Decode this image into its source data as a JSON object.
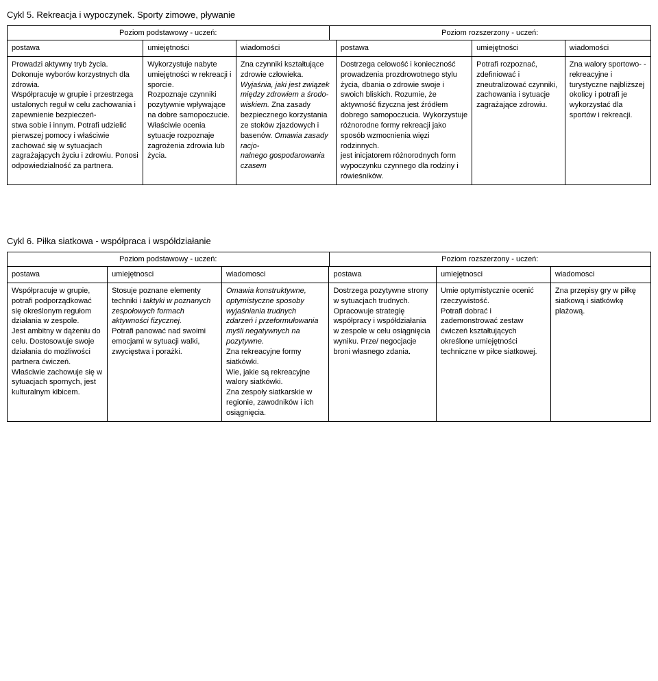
{
  "cycle5": {
    "title": "Cykl 5. Rekreacja i wypoczynek. Sporty zimowe, pływanie",
    "level_basic": "Poziom podstawowy - uczeń:",
    "level_ext": "Poziom rozszerzony - uczeń:",
    "headers": {
      "c1": "postawa",
      "c2": "umiejętności",
      "c3": "wiadomości",
      "c4": "postawa",
      "c5": "umiejętności",
      "c6": "wiadomości"
    },
    "row": {
      "c1": "Prowadzi aktywny tryb życia.\nDokonuje wyborów korzystnych dla zdrowia.\nWspółpracuje w grupie i przestrzega ustalonych reguł w celu zachowania i zapewnienie bezpieczeń-\nstwa sobie i innym. Potrafi udzielić pierwszej pomocy i właściwie zachować się w sytuacjach zagrażających życiu i zdrowiu. Ponosi odpowiedzialność za partnera.",
      "c2": "Wykorzystuje nabyte umiejętności w rekreacji i sporcie.\nRozpoznaje czynniki pozytywnie wpływające na dobre samopoczucie.\nWłaściwie ocenia sytuacje rozpoznaje zagrożenia zdrowia lub życia.",
      "c3_plain1": "Zna czynniki kształtujące zdrowie człowieka.",
      "c3_it1": "Wyjaśnia, jaki jest związek między zdrowiem a środo-\nwiskiem.",
      "c3_plain2": "Zna zasady bezpiecznego korzystania ze stoków zjazdowych i basenów.",
      "c3_it2": "Omawia zasady racjo-\nnalnego gospodarowania czasem",
      "c4": "Dostrzega celowość i konieczność prowadzenia prozdrowotnego stylu życia, dbania o zdrowie swoje i swoich bliskich. Rozumie, że aktywność fizyczna jest źródłem dobrego samopoczucia. Wykorzystuje różnorodne formy rekreacji jako sposób wzmocnienia więzi rodzinnych.\njest inicjatorem różnorodnych form wypoczynku czynnego dla rodziny i rówieśników.",
      "c5": "Potrafi rozpoznać, zdefiniować i zneutralizować czynniki, zachowania i sytuacje zagrażające zdrowiu.",
      "c6": "Zna walory sportowo- -rekreacyjne i turystyczne najbliższej okolicy i potrafi je wykorzystać dla sportów i rekreacji."
    },
    "col_widths": [
      "19%",
      "13%",
      "14%",
      "19%",
      "13%",
      "12%"
    ]
  },
  "cycle6": {
    "title": "Cykl 6. Piłka siatkowa - współpraca i współdziałanie",
    "level_basic": "Poziom podstawowy - uczeń:",
    "level_ext": "Poziom rozszerzony - uczeń:",
    "headers": {
      "c1": "postawa",
      "c2": "umiejętnosci",
      "c3": "wiadomosci",
      "c4": "postawa",
      "c5": "umiejętnosci",
      "c6": "wiadomosci"
    },
    "row": {
      "c1": "Współpracuje w grupie, potrafi podporządkować się określonym regułom działania w zespole.\nJest ambitny w dążeniu do celu. Dostosowuje swoje działania do możliwości partnera ćwiczeń. Właściwie zachowuje się w sytuacjach spornych, jest kulturalnym kibicem.",
      "c2_plain1": "Stosuje poznane elementy techniki i ",
      "c2_it1": "taktyki w poznanych zespołowych formach aktywności fizycznej.",
      "c2_plain2": "\nPotrafi panować nad swoimi emocjami w sytuacji walki, zwycięstwa i porażki.",
      "c3_it1": "Omawia konstruktywne, optymistyczne sposoby wyjaśniania trudnych zdarzeń i przeformułowania myśli negatywnych na pozytywne.",
      "c3_plain": "\nZna rekreacyjne formy siatkówki.\nWie, jakie są rekreacyjne walory siatkówki.\nZna zespoły siatkarskie w regionie, zawodników i ich osiągnięcia.",
      "c4": "Dostrzega pozytywne strony w sytuacjach trudnych.\nOpracowuje strategię współpracy i współdziałania w zespole w celu osiągnięcia wyniku. Prze/ negocjacje broni własnego zdania.",
      "c5": "Umie optymistycznie ocenić rzeczywistość.\nPotrafi dobrać i zademonstrować zestaw ćwiczeń kształtujących określone umiejętności techniczne w piłce siatkowej.",
      "c6": "Zna przepisy gry w piłkę siatkową i siatkówkę plażową."
    },
    "col_widths": [
      "14%",
      "16%",
      "15%",
      "15%",
      "16%",
      "14%"
    ]
  }
}
